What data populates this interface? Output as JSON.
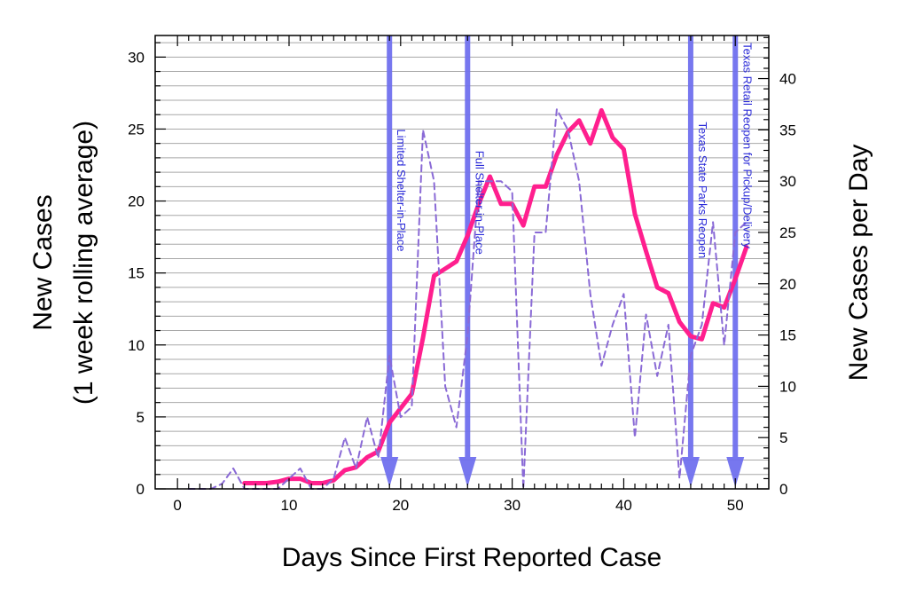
{
  "chart_data": {
    "type": "line",
    "xlabel": "Days Since First Reported Case",
    "ylabel_left_line1": "New Cases",
    "ylabel_left_line2": "(1 week rolling average)",
    "ylabel_right": "New Cases per Day",
    "xlim": [
      -2,
      53
    ],
    "ylim_left": [
      0,
      31.5
    ],
    "ylim_right": [
      0,
      44.2
    ],
    "x_ticks": [
      0,
      10,
      20,
      30,
      40,
      50
    ],
    "y_left_ticks": [
      0,
      5,
      10,
      15,
      20,
      25,
      30
    ],
    "y_right_ticks": [
      0,
      5,
      10,
      15,
      20,
      25,
      30,
      35,
      40
    ],
    "grid": "horizontal",
    "colors": {
      "rolling": "#ff1f8e",
      "daily": "#8a6ad6",
      "annotation": "#7070ee",
      "annotation_text": "#2a2ad8"
    },
    "series": [
      {
        "axis": "left",
        "style": "solid",
        "x": [
          6,
          7,
          8,
          9,
          10,
          11,
          12,
          13,
          14,
          15,
          16,
          17,
          18,
          19,
          20,
          21,
          22,
          23,
          24,
          25,
          26,
          27,
          28,
          29,
          30,
          31,
          32,
          33,
          34,
          35,
          36,
          37,
          38,
          39,
          40,
          41,
          42,
          43,
          44,
          45,
          46,
          47,
          48,
          49,
          50,
          51
        ],
        "values": [
          0.4,
          0.4,
          0.4,
          0.5,
          0.7,
          0.7,
          0.4,
          0.4,
          0.6,
          1.3,
          1.5,
          2.2,
          2.6,
          4.6,
          5.6,
          6.6,
          10.5,
          14.8,
          15.3,
          15.8,
          17.6,
          19.8,
          21.7,
          19.8,
          19.8,
          18.3,
          21.0,
          21.0,
          23.2,
          24.8,
          25.6,
          24.0,
          26.3,
          24.4,
          23.6,
          19.1,
          16.5,
          14.0,
          13.6,
          11.6,
          10.6,
          10.4,
          12.9,
          12.6,
          14.6,
          16.8
        ]
      },
      {
        "axis": "right",
        "style": "dashed",
        "x": [
          1,
          2,
          3,
          4,
          5,
          6,
          7,
          8,
          9,
          10,
          11,
          12,
          13,
          14,
          15,
          16,
          17,
          18,
          19,
          20,
          21,
          22,
          23,
          24,
          25,
          26,
          27,
          28,
          29,
          30,
          31,
          32,
          33,
          34,
          35,
          36,
          37,
          38,
          39,
          40,
          41,
          42,
          43,
          44,
          45,
          46,
          47,
          48,
          49,
          50,
          51
        ],
        "values": [
          0,
          0,
          0,
          0.5,
          2,
          0,
          0,
          0,
          0,
          1,
          2,
          0,
          0,
          1,
          5,
          2,
          7,
          3,
          13,
          7,
          8,
          35,
          30,
          10,
          6,
          15,
          30,
          30,
          30,
          29,
          0,
          25,
          25,
          37,
          35,
          30,
          19,
          12,
          16,
          19,
          5,
          17,
          11,
          16,
          1,
          13,
          16,
          26,
          14,
          25,
          26
        ]
      }
    ],
    "annotations": [
      {
        "x": 19,
        "label": "Limited Shelter-in-Place",
        "label_y": 25.0
      },
      {
        "x": 26,
        "label": "Full Shelter-in-Place",
        "label_y": 23.5
      },
      {
        "x": 46,
        "label": "Texas State Parks Reopen",
        "label_y": 25.5
      },
      {
        "x": 50,
        "label": "Texas Retail Reopen for Pickup/Delivery",
        "label_y": 31.0
      }
    ]
  }
}
